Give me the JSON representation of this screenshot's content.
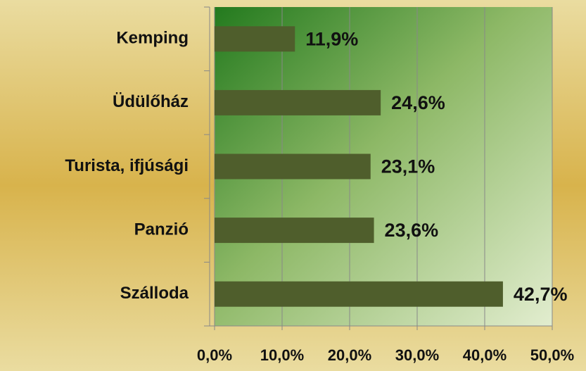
{
  "chart_data": {
    "type": "bar",
    "orientation": "horizontal",
    "categories": [
      "Kemping",
      "Üdülőház",
      "Turista, ifjúsági",
      "Panzió",
      "Szálloda"
    ],
    "values": [
      11.9,
      24.6,
      23.1,
      23.6,
      42.7
    ],
    "value_labels": [
      "11,9%",
      "24,6%",
      "23,1%",
      "23,6%",
      "42,7%"
    ],
    "color": "#4f5e2c",
    "xlim": [
      0,
      50
    ],
    "xticks": [
      {
        "value": 0,
        "label": "0,0%"
      },
      {
        "value": 10,
        "label": "10,0%"
      },
      {
        "value": 20,
        "label": "20,0%"
      },
      {
        "value": 30,
        "label": "30,0%"
      },
      {
        "value": 40,
        "label": "40,0%"
      },
      {
        "value": 50,
        "label": "50,0%"
      }
    ],
    "grid": true
  }
}
